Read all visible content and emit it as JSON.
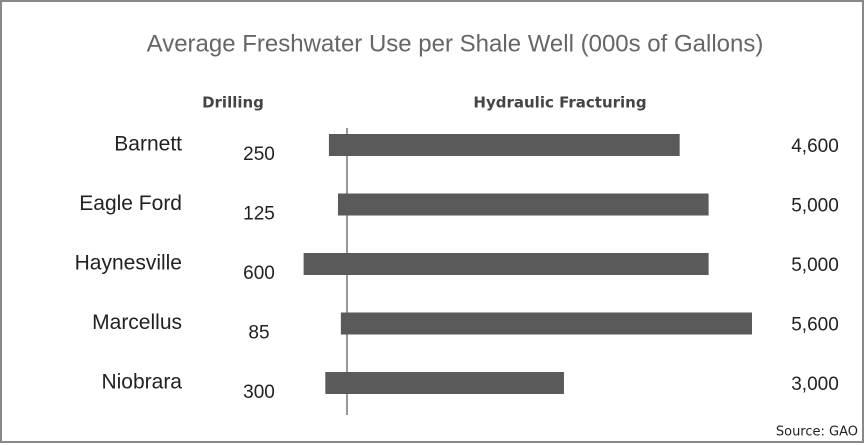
{
  "chart_data": {
    "type": "bar",
    "title": "Average Freshwater Use per Shale Well (000s of Gallons)",
    "categories": [
      "Barnett",
      "Eagle Ford",
      "Haynesville",
      "Marcellus",
      "Niobrara"
    ],
    "series": [
      {
        "name": "Drilling",
        "color": "#5a5a5a",
        "values": [
          250,
          125,
          600,
          85,
          300
        ]
      },
      {
        "name": "Hydraulic Fracturing",
        "color": "#5a5a5a",
        "values": [
          4600,
          5000,
          5000,
          5600,
          3000
        ],
        "value_labels": [
          "4,600",
          "5,000",
          "5,000",
          "5,600",
          "3,000"
        ]
      }
    ],
    "source": "Source: GAO"
  }
}
